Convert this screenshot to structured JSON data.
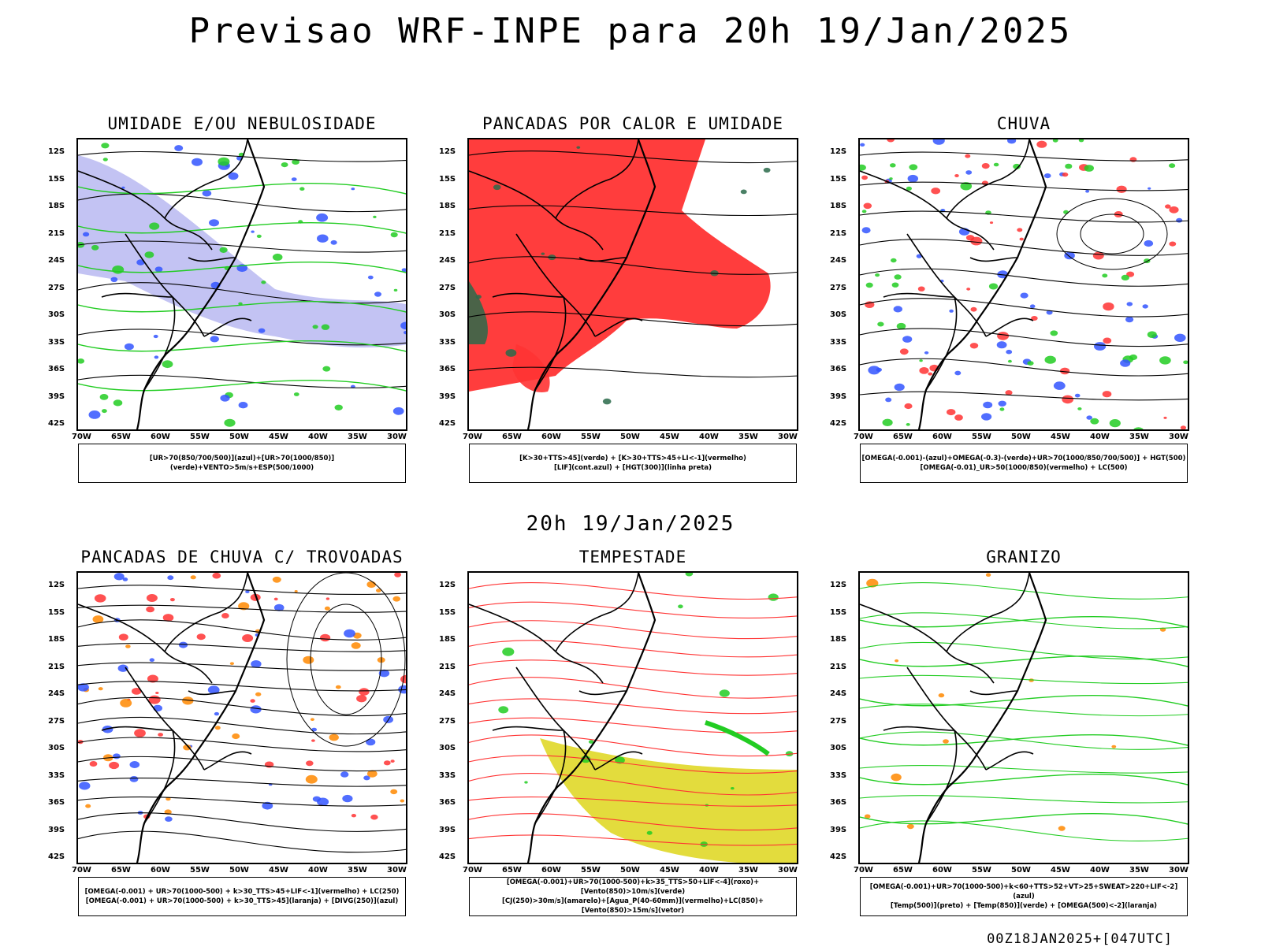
{
  "title": "Previsao WRF-INPE  para 20h 19/Jan/2025",
  "mid_date": "20h 19/Jan/2025",
  "footer": "00Z18JAN2025+[047UTC]",
  "lat_labels": [
    "12S",
    "15S",
    "18S",
    "21S",
    "24S",
    "27S",
    "30S",
    "33S",
    "36S",
    "39S",
    "42S"
  ],
  "lon_labels": [
    "70W",
    "65W",
    "60W",
    "55W",
    "50W",
    "45W",
    "40W",
    "35W",
    "30W"
  ],
  "colors": {
    "blue": "#3355ff",
    "green": "#22cc22",
    "red": "#ff3333",
    "lavender": "#aaaaee",
    "orange": "#ff8800",
    "yellow": "#e0d828",
    "darkgreen": "#2a6a4a"
  },
  "panels": [
    {
      "title": "UMIDADE E/OU NEBULOSIDADE",
      "legend": [
        "[UR>70(850/700/500)](azul)+[UR>70(1000/850)](verde)+VENTO>5m/s+ESP(500/1000)"
      ]
    },
    {
      "title": "PANCADAS POR CALOR E UMIDADE",
      "legend": [
        "[K>30+TTS>45](verde) + [K>30+TTS>45+LI<-1](vermelho)",
        "[LIF](cont.azul) + [HGT(300)](linha preta)"
      ]
    },
    {
      "title": "CHUVA",
      "legend": [
        "[OMEGA(-0.001)-(azul)+OMEGA(-0.3)-(verde)+UR>70(1000/850/700/500)] + HGT(500)",
        "[OMEGA(-0.01)_UR>50(1000/850)(vermelho) + LC(500)"
      ]
    },
    {
      "title": "PANCADAS DE CHUVA C/ TROVOADAS",
      "legend": [
        "[OMEGA(-0.001) + UR>70(1000-500) + k>30_TTS>45+LIF<-1](vermelho) + LC(250)",
        "[OMEGA(-0.001) + UR>70(1000-500) + k>30_TTS>45](laranja) + [DIVG(250)](azul)"
      ]
    },
    {
      "title": "TEMPESTADE",
      "legend": [
        "[OMEGA(-0.001)+UR>70(1000-500)+k>35_TTS>50+LIF<-4](roxo)+[Vento(850)>10m/s](verde)",
        "[CJ(250)>30m/s](amarelo)+[Agua_P(40-60mm)](vermelho)+LC(850)+[Vento(850)>15m/s](vetor)"
      ]
    },
    {
      "title": "GRANIZO",
      "legend": [
        "[OMEGA(-0.001)+UR>70(1000-500)+k<60+TTS>52+VT>25+SWEAT>220+LIF<-2](azul)",
        "[Temp(500)](preto) + [Temp(850)](verde) + [OMEGA(500)<-2](laranja)"
      ]
    }
  ]
}
